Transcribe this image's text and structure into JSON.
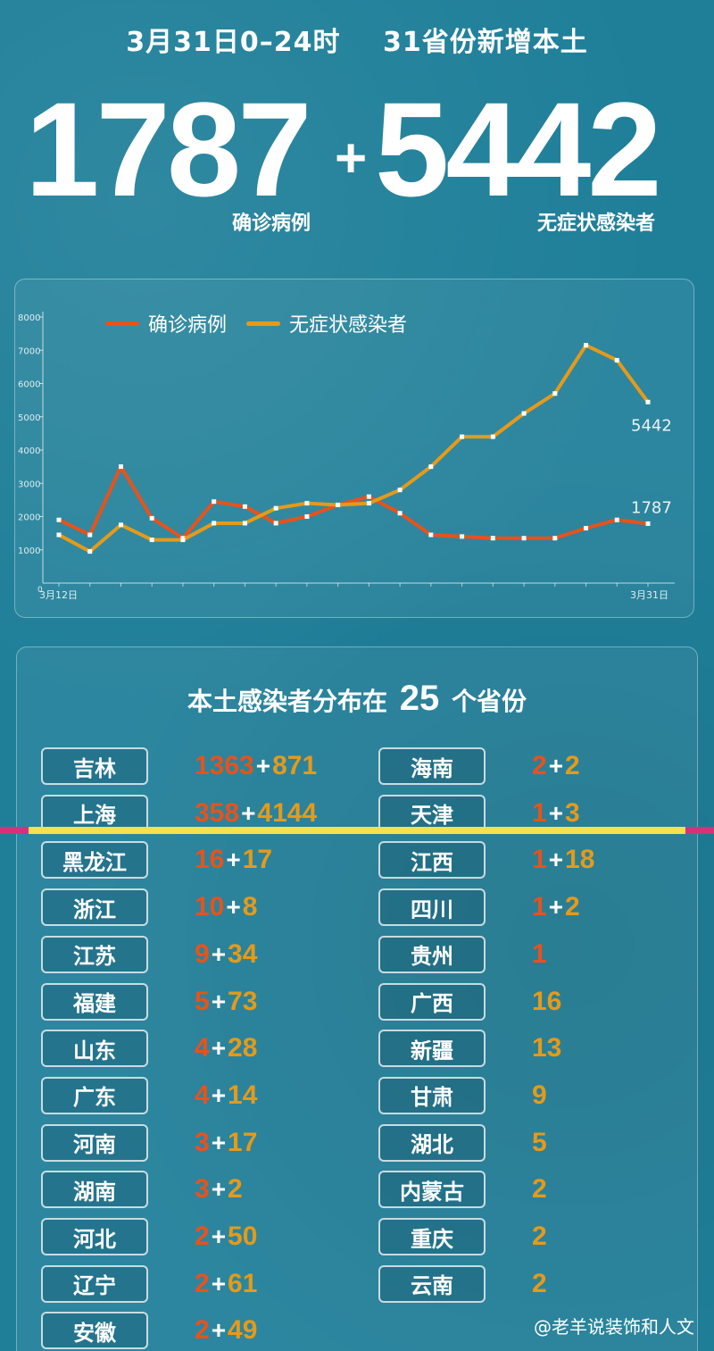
{
  "header": {
    "date": "3月31日0–24时",
    "subtitle": "31省份新增本土",
    "confirmed": "1787",
    "plus": "+",
    "asymptomatic": "5442",
    "confirmed_label": "确诊病例",
    "asymptomatic_label": "无症状感染者"
  },
  "colors": {
    "confirmed": "#e8521b",
    "asymptomatic": "#e59a1a",
    "background": "#1f7f99"
  },
  "chart_data": {
    "type": "line",
    "x_first_label": "3月12日",
    "x_last_label": "3月31日",
    "y_ticks": [
      "1000",
      "2000",
      "3000",
      "4000",
      "5000",
      "6000",
      "7000",
      "8000"
    ],
    "y_zero": "0",
    "ylim": [
      0,
      8000
    ],
    "legend_position": "top-left",
    "series": [
      {
        "name": "确诊病例",
        "color": "#e8521b",
        "values": [
          1900,
          1450,
          3500,
          1950,
          1350,
          2450,
          2300,
          1800,
          2000,
          2350,
          2600,
          2100,
          1450,
          1400,
          1350,
          1350,
          1350,
          1650,
          1900,
          1787
        ],
        "end_label": "1787"
      },
      {
        "name": "无症状感染者",
        "color": "#e59a1a",
        "values": [
          1450,
          950,
          1750,
          1300,
          1300,
          1800,
          1800,
          2250,
          2400,
          2350,
          2400,
          2800,
          3500,
          4400,
          4400,
          5100,
          5700,
          7150,
          6700,
          5442
        ],
        "end_label": "5442"
      }
    ]
  },
  "table": {
    "title_prefix": "本土感染者分布在",
    "title_count": "25",
    "title_suffix": "个省份",
    "left": [
      {
        "province": "吉林",
        "confirmed": "1363",
        "asymptomatic": "871"
      },
      {
        "province": "上海",
        "confirmed": "358",
        "asymptomatic": "4144"
      },
      {
        "province": "黑龙江",
        "confirmed": "16",
        "asymptomatic": "17"
      },
      {
        "province": "浙江",
        "confirmed": "10",
        "asymptomatic": "8"
      },
      {
        "province": "江苏",
        "confirmed": "9",
        "asymptomatic": "34"
      },
      {
        "province": "福建",
        "confirmed": "5",
        "asymptomatic": "73"
      },
      {
        "province": "山东",
        "confirmed": "4",
        "asymptomatic": "28"
      },
      {
        "province": "广东",
        "confirmed": "4",
        "asymptomatic": "14"
      },
      {
        "province": "河南",
        "confirmed": "3",
        "asymptomatic": "17"
      },
      {
        "province": "湖南",
        "confirmed": "3",
        "asymptomatic": "2"
      },
      {
        "province": "河北",
        "confirmed": "2",
        "asymptomatic": "50"
      },
      {
        "province": "辽宁",
        "confirmed": "2",
        "asymptomatic": "61"
      },
      {
        "province": "安徽",
        "confirmed": "2",
        "asymptomatic": "49"
      }
    ],
    "right": [
      {
        "province": "海南",
        "confirmed": "2",
        "asymptomatic": "2"
      },
      {
        "province": "天津",
        "confirmed": "1",
        "asymptomatic": "3"
      },
      {
        "province": "江西",
        "confirmed": "1",
        "asymptomatic": "18"
      },
      {
        "province": "四川",
        "confirmed": "1",
        "asymptomatic": "2"
      },
      {
        "province": "贵州",
        "confirmed": "1",
        "asymptomatic": ""
      },
      {
        "province": "广西",
        "confirmed": "",
        "asymptomatic": "16"
      },
      {
        "province": "新疆",
        "confirmed": "",
        "asymptomatic": "13"
      },
      {
        "province": "甘肃",
        "confirmed": "",
        "asymptomatic": "9"
      },
      {
        "province": "湖北",
        "confirmed": "",
        "asymptomatic": "5"
      },
      {
        "province": "内蒙古",
        "confirmed": "",
        "asymptomatic": "2"
      },
      {
        "province": "重庆",
        "confirmed": "",
        "asymptomatic": "2"
      },
      {
        "province": "云南",
        "confirmed": "",
        "asymptomatic": "2"
      }
    ]
  },
  "watermark": "@老羊说装饰和人文"
}
